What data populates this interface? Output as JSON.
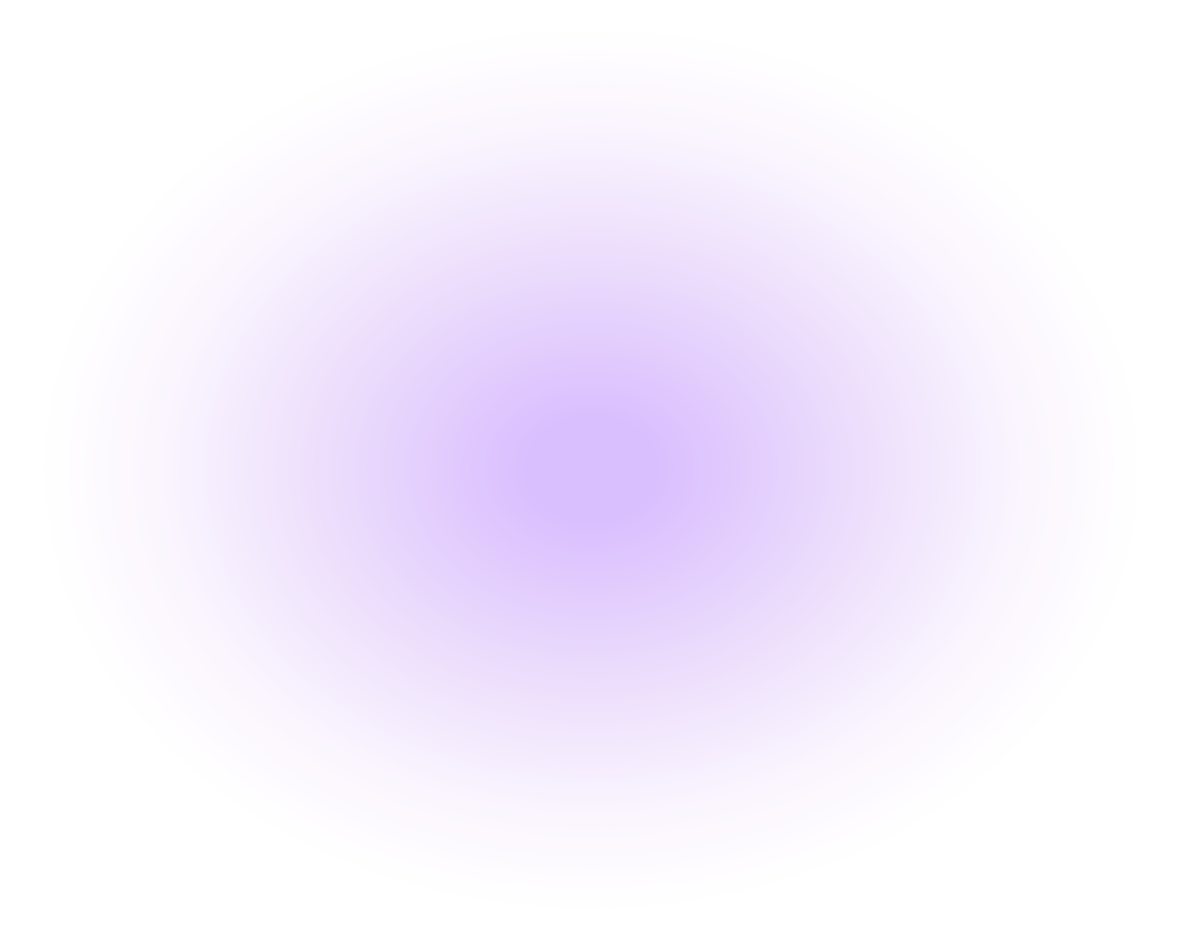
{
  "background": {
    "base_color": "#ffffff",
    "glow_center_color": "#dabffe",
    "glow_mid_color": "#eddffc"
  }
}
